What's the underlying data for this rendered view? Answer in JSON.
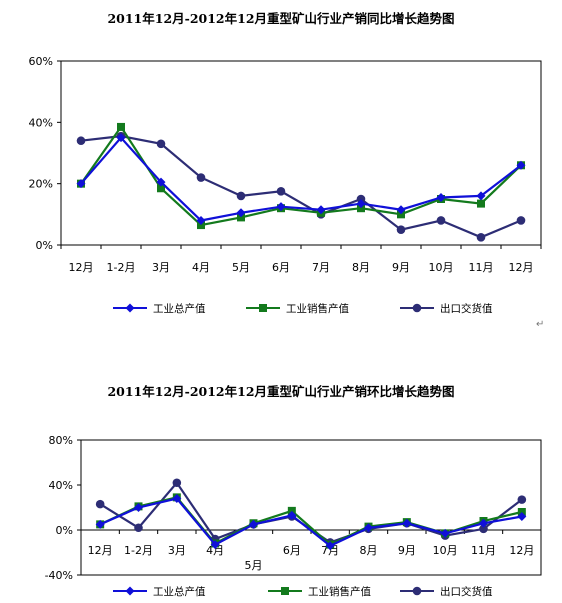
{
  "charts": {
    "yoy": {
      "title": "2011年12月-2012年12月重型矿山行业产销同比增长趋势图"
    },
    "mom": {
      "title": "2011年12月-2012年12月重型矿山行业产销环比增长趋势图"
    }
  },
  "colors": {
    "series1": "#1010d8",
    "series2": "#137a1d",
    "series3": "#2d2d75",
    "axis": "#000000"
  },
  "chart_data": [
    {
      "type": "line",
      "title": "2011年12月-2012年12月重型矿山行业产销同比增长趋势图",
      "categories": [
        "12月",
        "1-2月",
        "3月",
        "4月",
        "5月",
        "6月",
        "7月",
        "8月",
        "9月",
        "10月",
        "11月",
        "12月"
      ],
      "ylim": [
        0,
        60
      ],
      "yticks": [
        "0%",
        "20%",
        "40%",
        "60%"
      ],
      "ytick_values": [
        0,
        20,
        40,
        60
      ],
      "grid": false,
      "legend_position": "bottom",
      "series": [
        {
          "name": "工业总产值",
          "marker": "diamond",
          "values": [
            20,
            35,
            20.5,
            8,
            10.5,
            12.5,
            11.5,
            13.5,
            11.5,
            15.5,
            16,
            26
          ]
        },
        {
          "name": "工业销售产值",
          "marker": "square",
          "values": [
            20,
            38.5,
            18.5,
            6.5,
            9,
            12,
            10.5,
            12,
            10,
            15,
            13.5,
            26
          ]
        },
        {
          "name": "出口交货值",
          "marker": "circle",
          "values": [
            34,
            35.5,
            33,
            22,
            16,
            17.5,
            10,
            15,
            5,
            8,
            2.5,
            8
          ]
        }
      ]
    },
    {
      "type": "line",
      "title": "2011年12月-2012年12月重型矿山行业产销环比增长趋势图",
      "categories": [
        "12月",
        "1-2月",
        "3月",
        "4月",
        "5月",
        "6月",
        "7月",
        "8月",
        "9月",
        "10月",
        "11月",
        "12月"
      ],
      "ylim": [
        -40,
        80
      ],
      "yticks": [
        "-40%",
        "0%",
        "40%",
        "80%"
      ],
      "ytick_values": [
        -40,
        0,
        40,
        80
      ],
      "grid": false,
      "legend_position": "bottom",
      "series": [
        {
          "name": "工业总产值",
          "marker": "diamond",
          "values": [
            5,
            20,
            28,
            -13,
            5,
            13,
            -14,
            2,
            6,
            -3,
            6,
            12
          ]
        },
        {
          "name": "工业销售产值",
          "marker": "square",
          "values": [
            5,
            21,
            29,
            -12,
            6,
            17,
            -13,
            3,
            7,
            -3,
            8,
            16
          ]
        },
        {
          "name": "出口交货值",
          "marker": "circle",
          "values": [
            23,
            2,
            42,
            -8,
            5,
            12,
            -11,
            1,
            6,
            -5,
            1,
            27
          ]
        }
      ]
    }
  ]
}
